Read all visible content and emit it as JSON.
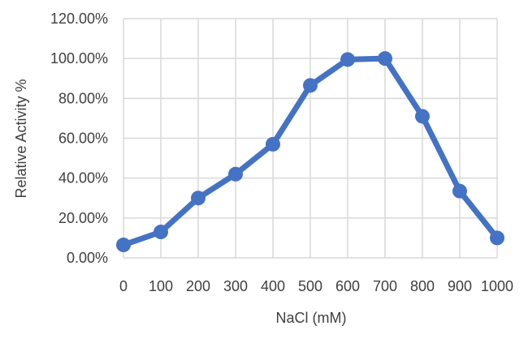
{
  "chart_data": {
    "type": "line",
    "title": "",
    "xlabel": "NaCl (mM)",
    "ylabel": "Relative Activity %",
    "x": [
      0,
      100,
      200,
      300,
      400,
      500,
      600,
      700,
      800,
      900,
      1000
    ],
    "x_tick_labels": [
      "0",
      "100",
      "200",
      "300",
      "400",
      "500",
      "600",
      "700",
      "800",
      "900",
      "1000"
    ],
    "y_tick_labels": [
      "0.00%",
      "20.00%",
      "40.00%",
      "60.00%",
      "80.00%",
      "100.00%",
      "120.00%"
    ],
    "y_ticks": [
      0,
      20,
      40,
      60,
      80,
      100,
      120
    ],
    "ylim": [
      0,
      120
    ],
    "grid": true,
    "legend": "none",
    "series": [
      {
        "values": [
          6.5,
          13,
          30,
          42,
          57,
          86.5,
          99.5,
          100,
          71,
          33.5,
          10
        ],
        "color": "#4472c4"
      }
    ]
  }
}
